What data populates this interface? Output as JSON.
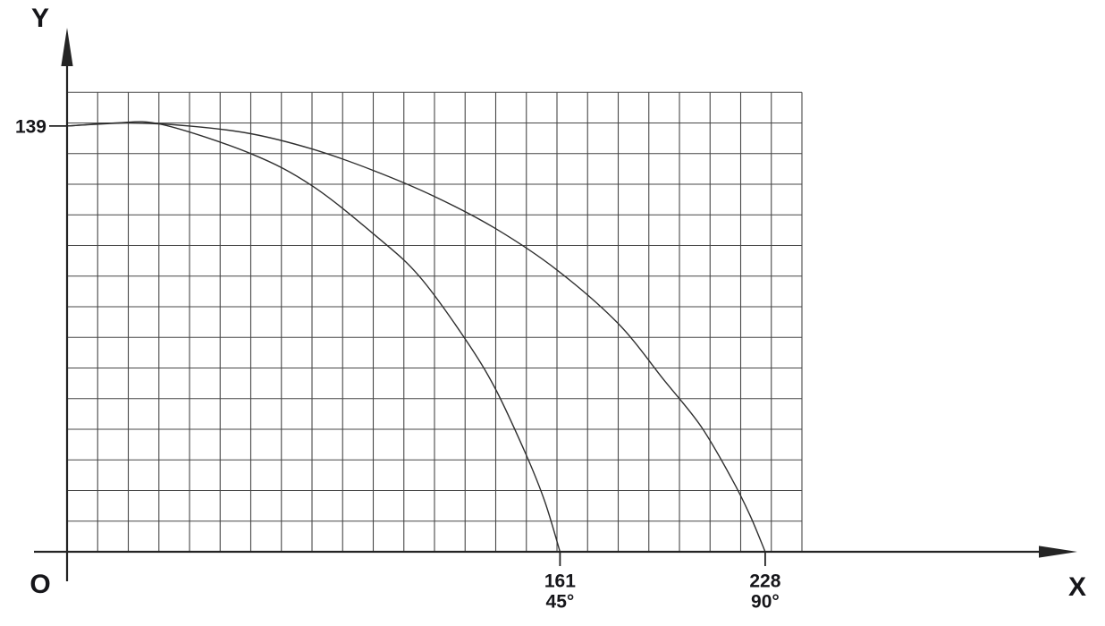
{
  "page": {
    "background_color": "#ffffff"
  },
  "chart_data": {
    "type": "line",
    "title": "",
    "x_axis_label": "X",
    "y_axis_label": "Y",
    "origin_label": "O",
    "grid": {
      "grid_on": true,
      "columns": 24,
      "rows": 15,
      "units_per_cell": 10,
      "x_range": [
        0,
        240
      ],
      "y_range": [
        0,
        150
      ]
    },
    "y_ticks": [
      {
        "value": 139,
        "label": "139"
      }
    ],
    "x_ticks": [
      {
        "value": 161,
        "label": "161",
        "sublabel": "45°"
      },
      {
        "value": 228,
        "label": "228",
        "sublabel": "90°"
      }
    ],
    "legend": {
      "visible": false
    },
    "series": [
      {
        "name": "45° curve",
        "points": [
          [
            0,
            139
          ],
          [
            16,
            140
          ],
          [
            31,
            139.5
          ],
          [
            60,
            130
          ],
          [
            80,
            119.5
          ],
          [
            101,
            103
          ],
          [
            115,
            90
          ],
          [
            130,
            69.5
          ],
          [
            140,
            53
          ],
          [
            150,
            31.5
          ],
          [
            156,
            16.5
          ],
          [
            161,
            0
          ]
        ]
      },
      {
        "name": "90° curve",
        "points": [
          [
            0,
            139
          ],
          [
            20,
            140
          ],
          [
            40,
            139
          ],
          [
            60,
            136.5
          ],
          [
            80,
            131.5
          ],
          [
            100,
            124.5
          ],
          [
            120,
            116
          ],
          [
            140,
            105.5
          ],
          [
            160,
            92
          ],
          [
            180,
            74.5
          ],
          [
            195,
            56
          ],
          [
            207,
            41
          ],
          [
            217,
            24
          ],
          [
            223,
            12
          ],
          [
            228,
            0
          ]
        ]
      }
    ],
    "colors": {
      "background": "#ffffff",
      "grid": "#474747",
      "axis": "#242424",
      "curve": "#2f2f2f",
      "text": "#16161a"
    }
  }
}
